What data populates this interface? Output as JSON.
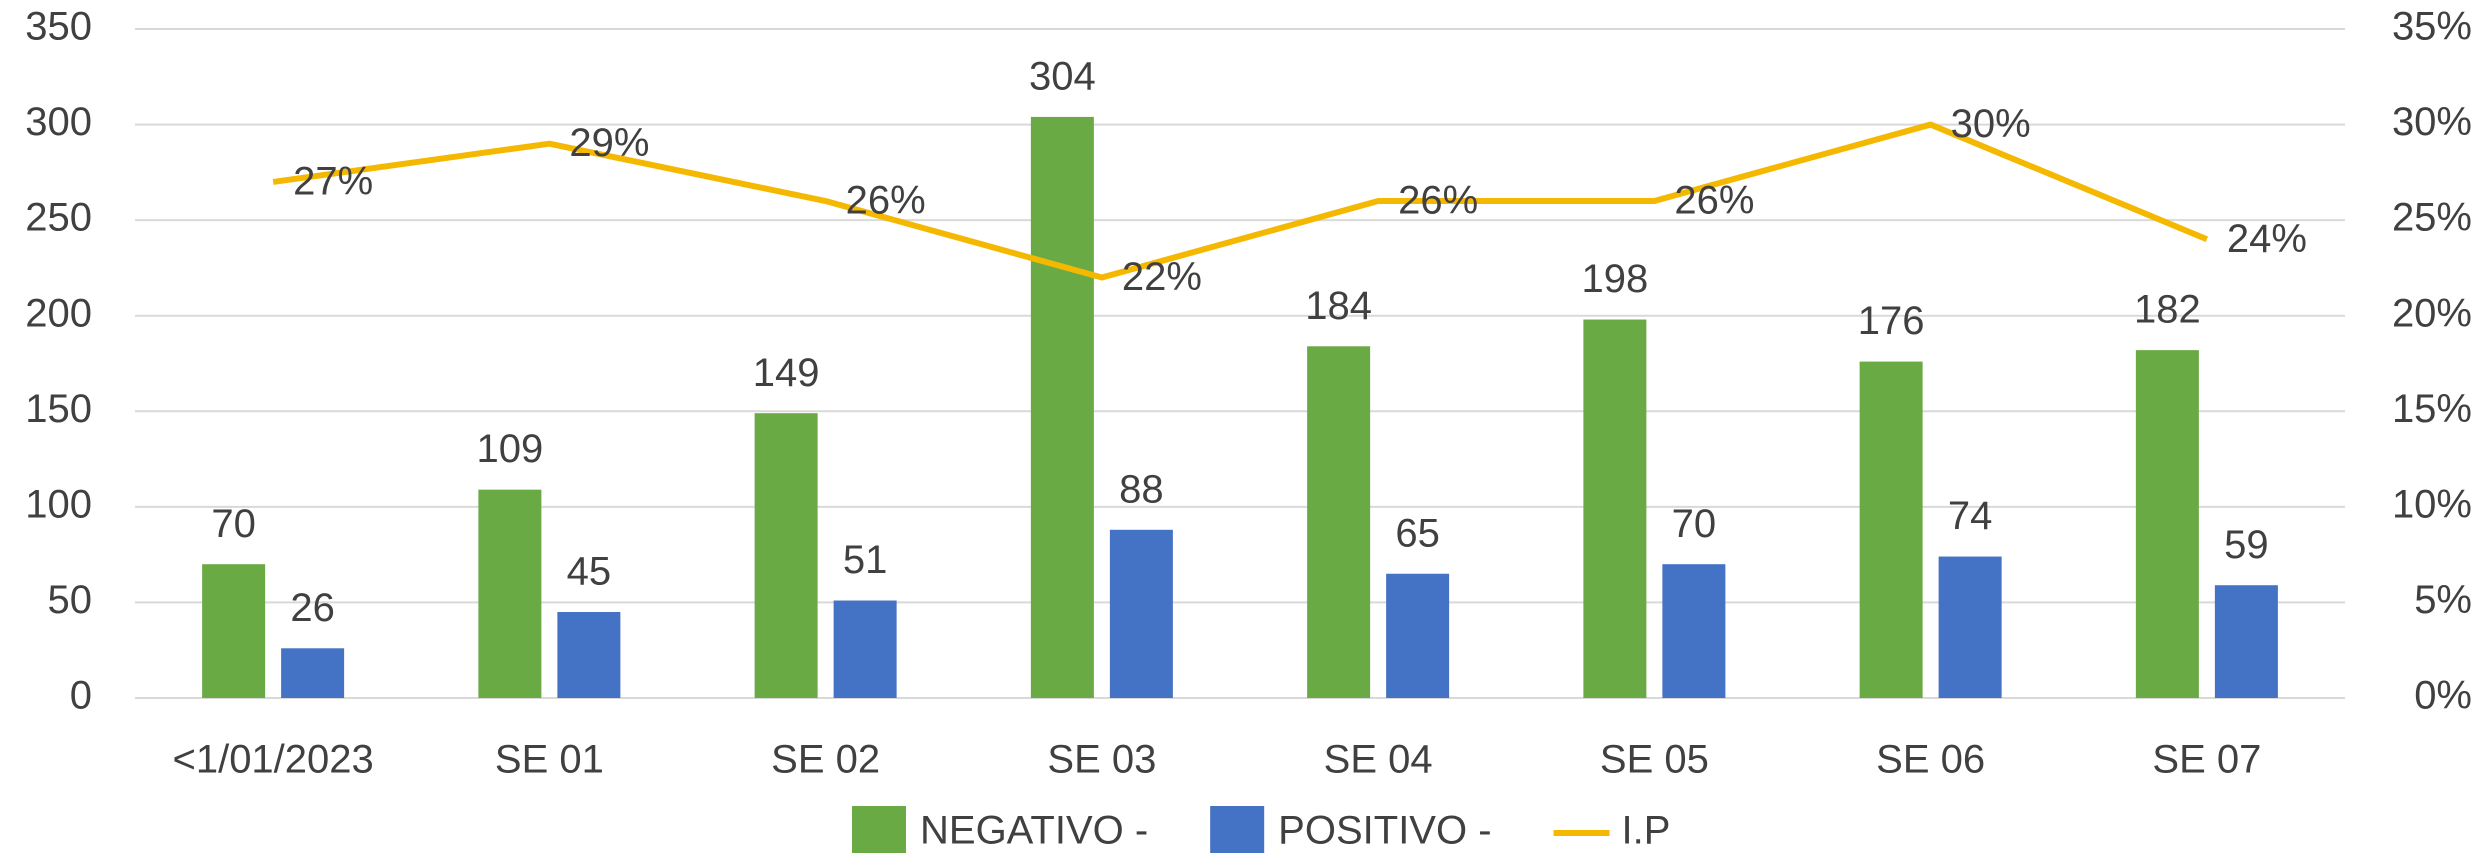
{
  "chart_data": {
    "type": "bar",
    "categories": [
      "<1/01/2023",
      "SE 01",
      "SE 02",
      "SE 03",
      "SE 04",
      "SE 05",
      "SE 06",
      "SE 07"
    ],
    "series": [
      {
        "name": "NEGATIVO -",
        "color": "#6aaa45",
        "values": [
          70,
          109,
          149,
          304,
          184,
          198,
          176,
          182
        ]
      },
      {
        "name": "POSITIVO -",
        "color": "#4472c4",
        "values": [
          26,
          45,
          51,
          88,
          65,
          70,
          74,
          59
        ]
      },
      {
        "name": "I.P",
        "type": "line",
        "axis": "y2",
        "color": "#f5b800",
        "values": [
          27,
          29,
          26,
          22,
          26,
          26,
          30,
          24
        ],
        "value_labels": [
          "27%",
          "29%",
          "26%",
          "22%",
          "26%",
          "26%",
          "30%",
          "24%"
        ]
      }
    ],
    "ylim": [
      0,
      350
    ],
    "yticks": [
      0,
      50,
      100,
      150,
      200,
      250,
      300,
      350
    ],
    "y2lim": [
      0,
      35
    ],
    "y2ticks": [
      {
        "value": 0,
        "label": "0%"
      },
      {
        "value": 5,
        "label": "5%"
      },
      {
        "value": 10,
        "label": "10%"
      },
      {
        "value": 15,
        "label": "15%"
      },
      {
        "value": 20,
        "label": "20%"
      },
      {
        "value": 25,
        "label": "25%"
      },
      {
        "value": 30,
        "label": "30%"
      },
      {
        "value": 35,
        "label": "35%"
      }
    ],
    "grid": true,
    "legend": "bottom"
  }
}
